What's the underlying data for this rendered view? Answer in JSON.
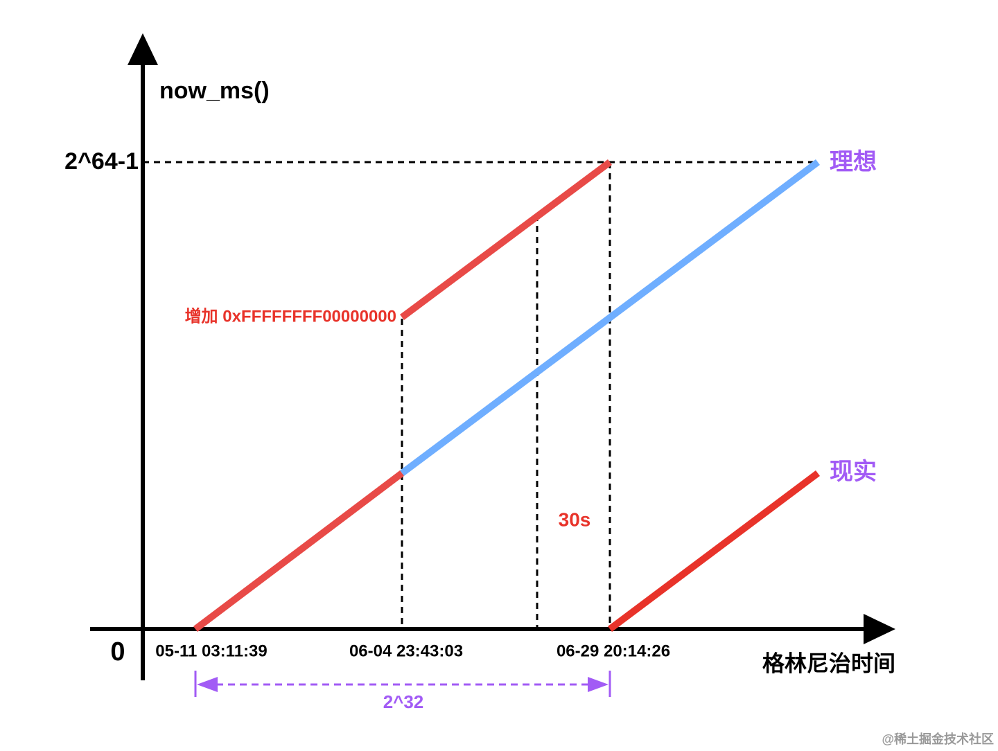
{
  "y_axis": {
    "label": "now_ms()",
    "max_label": "2^64-1",
    "origin_label": "0"
  },
  "x_axis": {
    "label": "格林尼治时间",
    "ticks": [
      "05-11 03:11:39",
      "06-04 23:43:03",
      "06-29 20:14:26"
    ]
  },
  "legend": {
    "ideal": "理想",
    "reality": "现实"
  },
  "annotations": {
    "jump": "增加 0xFFFFFFFF00000000",
    "gap": "30s",
    "span": "2^32"
  },
  "watermark": "@稀土掘金技术社区"
}
